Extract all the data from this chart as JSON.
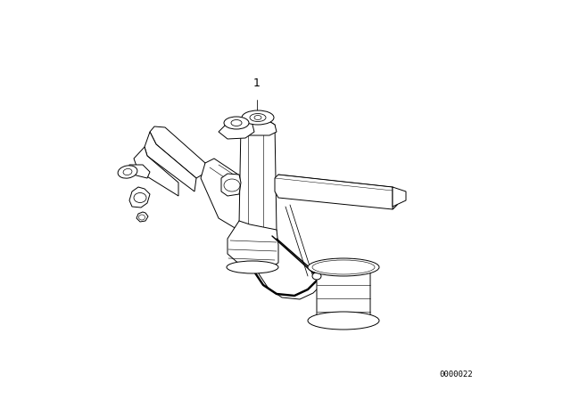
{
  "background_color": "#ffffff",
  "fig_width": 6.4,
  "fig_height": 4.48,
  "dpi": 100,
  "part_number": "0000022",
  "part_number_fontsize": 6.5,
  "label_1_text": "1",
  "label_1_fontsize": 9,
  "line_color": "#000000",
  "line_width": 0.7
}
